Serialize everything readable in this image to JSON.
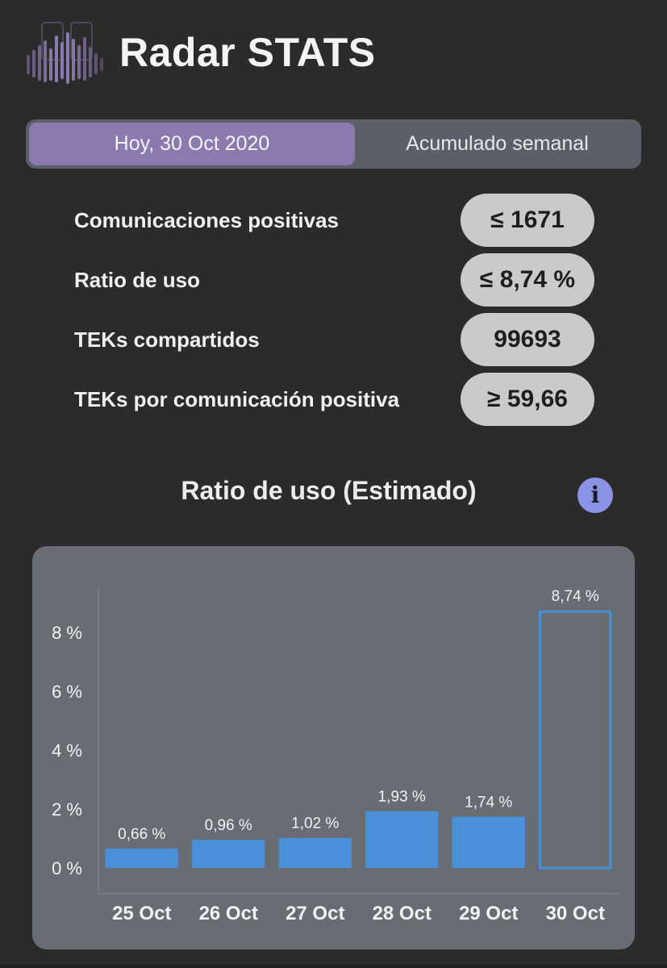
{
  "app": {
    "title": "Radar STATS",
    "logo_icon": "radar-bars-logo-icon"
  },
  "tabs": [
    {
      "label": "Hoy, 30 Oct 2020",
      "active": true
    },
    {
      "label": "Acumulado semanal",
      "active": false
    }
  ],
  "stats": [
    {
      "label": "Comunicaciones positivas",
      "value": "≤ 1671"
    },
    {
      "label": "Ratio de uso",
      "value": "≤ 8,74 %"
    },
    {
      "label": "TEKs compartidos",
      "value": "99693"
    },
    {
      "label": "TEKs por comunicación positiva",
      "value": "≥ 59,66"
    }
  ],
  "chart_section": {
    "title": "Ratio de uso (Estimado)",
    "info_icon": "info-icon",
    "info_symbol": "i"
  },
  "colors": {
    "bar": "#4a90d9",
    "active_tab": "#8a7aad",
    "card": "#676d72",
    "info": "#8a93e6"
  },
  "chart_data": {
    "type": "bar",
    "categories": [
      "25 Oct",
      "26 Oct",
      "27 Oct",
      "28 Oct",
      "29 Oct",
      "30 Oct"
    ],
    "values": [
      0.66,
      0.96,
      1.02,
      1.93,
      1.74,
      8.74
    ],
    "value_labels": [
      "0,66 %",
      "0,96 %",
      "1,02 %",
      "1,93 %",
      "1,74 %",
      "8,74 %"
    ],
    "outlined_last_bar": true,
    "yticks": [
      0,
      2,
      4,
      6,
      8
    ],
    "ytick_labels": [
      "0 %",
      "2 %",
      "4 %",
      "6 %",
      "8 %"
    ],
    "ylim": [
      0,
      9.5
    ],
    "title": "",
    "xlabel": "",
    "ylabel": "",
    "grid": false
  }
}
